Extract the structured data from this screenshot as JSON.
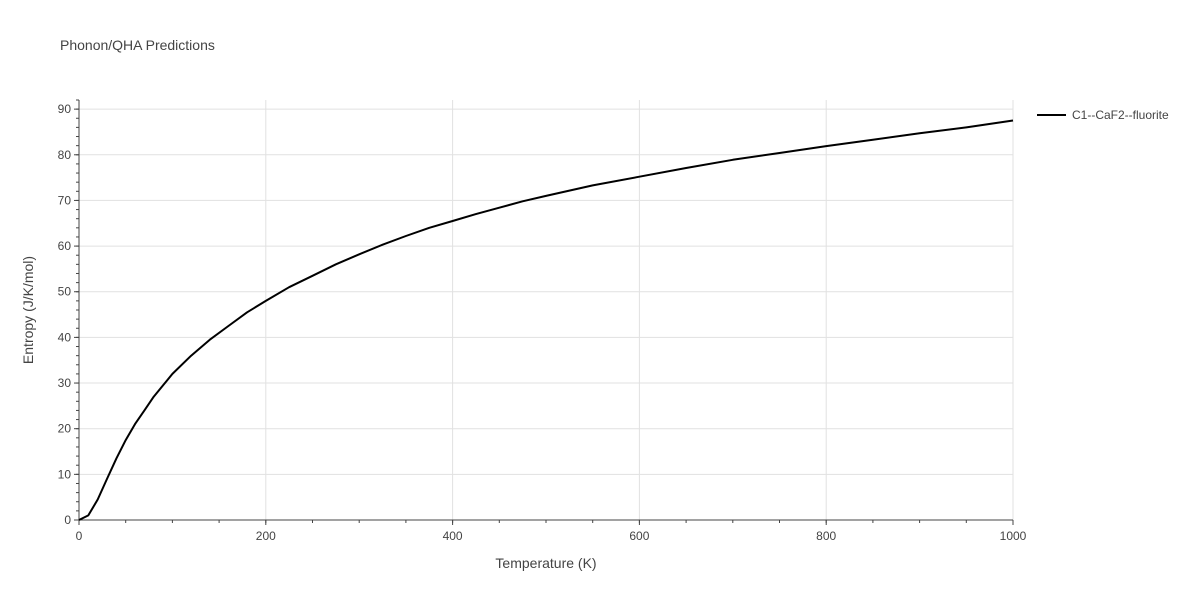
{
  "chart_data": {
    "type": "line",
    "title": "Phonon/QHA Predictions",
    "xlabel": "Temperature (K)",
    "ylabel": "Entropy (J/K/mol)",
    "xlim": [
      0,
      1000
    ],
    "ylim": [
      0,
      92
    ],
    "xticks": [
      0,
      200,
      400,
      600,
      800,
      1000
    ],
    "yticks": [
      0,
      10,
      20,
      30,
      40,
      50,
      60,
      70,
      80,
      90
    ],
    "xtick_labels": [
      "0",
      "200",
      "400",
      "600",
      "800",
      "1000"
    ],
    "ytick_labels": [
      "0",
      "10",
      "20",
      "30",
      "40",
      "50",
      "60",
      "70",
      "80",
      "90"
    ],
    "grid": true,
    "legend_position": "top-right-outside",
    "series": [
      {
        "name": "C1--CaF2--fluorite",
        "color": "#000000",
        "x": [
          0,
          10,
          20,
          30,
          40,
          50,
          60,
          70,
          80,
          90,
          100,
          120,
          140,
          160,
          180,
          200,
          225,
          250,
          275,
          300,
          325,
          350,
          375,
          400,
          425,
          450,
          475,
          500,
          550,
          600,
          650,
          700,
          750,
          800,
          850,
          900,
          950,
          1000
        ],
        "y": [
          0,
          1,
          4.5,
          9,
          13.5,
          17.5,
          21,
          24,
          27,
          29.5,
          32,
          36,
          39.5,
          42.5,
          45.5,
          48,
          51,
          53.5,
          56,
          58.2,
          60.3,
          62.2,
          64,
          65.5,
          67,
          68.4,
          69.8,
          71,
          73.3,
          75.2,
          77.1,
          78.9,
          80.4,
          81.9,
          83.3,
          84.7,
          86,
          87.5
        ]
      }
    ]
  }
}
